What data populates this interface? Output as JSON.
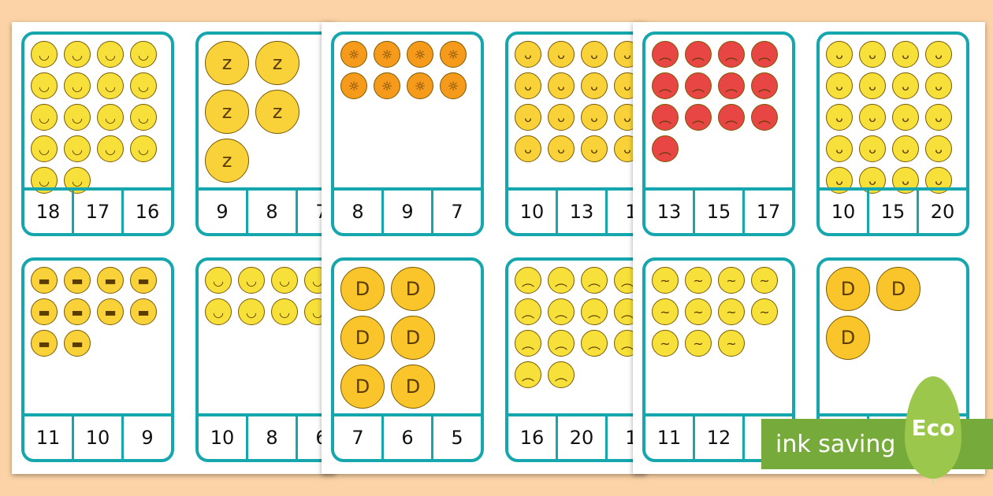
{
  "sheets": [
    {
      "cards": [
        {
          "emoji": "smiling-face",
          "color": "#f7e03a",
          "glyph": "◡",
          "count": 18,
          "answers": [
            "18",
            "17",
            "16"
          ]
        },
        {
          "emoji": "sleeping-face",
          "color": "#f9d23a",
          "glyph": "z",
          "count": 5,
          "big": true,
          "answers": [
            "9",
            "8",
            "7"
          ]
        },
        {
          "emoji": "sunglasses-face",
          "color": "#f9d23a",
          "glyph": "▬",
          "count": 10,
          "answers": [
            "11",
            "10",
            "9"
          ]
        },
        {
          "emoji": "halo-face",
          "color": "#f7e03a",
          "glyph": "◡",
          "count": 8,
          "answers": [
            "10",
            "8",
            "6"
          ]
        }
      ]
    },
    {
      "cards": [
        {
          "emoji": "sun",
          "color": "#f59a1a",
          "glyph": "☼",
          "count": 8,
          "answers": [
            "8",
            "9",
            "7"
          ]
        },
        {
          "emoji": "tongue-wink-face",
          "color": "#f9d23a",
          "glyph": "ᴗ",
          "count": 16,
          "answers": [
            "10",
            "13",
            "1"
          ]
        },
        {
          "emoji": "tears-of-joy-face",
          "color": "#f9c52a",
          "glyph": "D",
          "count": 6,
          "big": true,
          "answers": [
            "7",
            "6",
            "5"
          ]
        },
        {
          "emoji": "sad-tear-face",
          "color": "#f7e03a",
          "glyph": "︵",
          "count": 14,
          "answers": [
            "16",
            "20",
            "1"
          ]
        }
      ]
    },
    {
      "cards": [
        {
          "emoji": "angry-face",
          "color": "#e84545",
          "glyph": "︵",
          "count": 13,
          "answers": [
            "13",
            "15",
            "17"
          ]
        },
        {
          "emoji": "grinning-face",
          "color": "#f7e03a",
          "glyph": "ᴗ",
          "count": 20,
          "answers": [
            "10",
            "15",
            "20"
          ]
        },
        {
          "emoji": "confounded-face",
          "color": "#f7e03a",
          "glyph": "~",
          "count": 11,
          "answers": [
            "11",
            "12"
          ]
        },
        {
          "emoji": "sweat-smile-face",
          "color": "#f9c52a",
          "glyph": "D",
          "count": 3,
          "big": true,
          "answers": []
        }
      ]
    }
  ],
  "badge": {
    "label": "ink saving",
    "eco": "Eco",
    "color": "#76ab3c"
  }
}
